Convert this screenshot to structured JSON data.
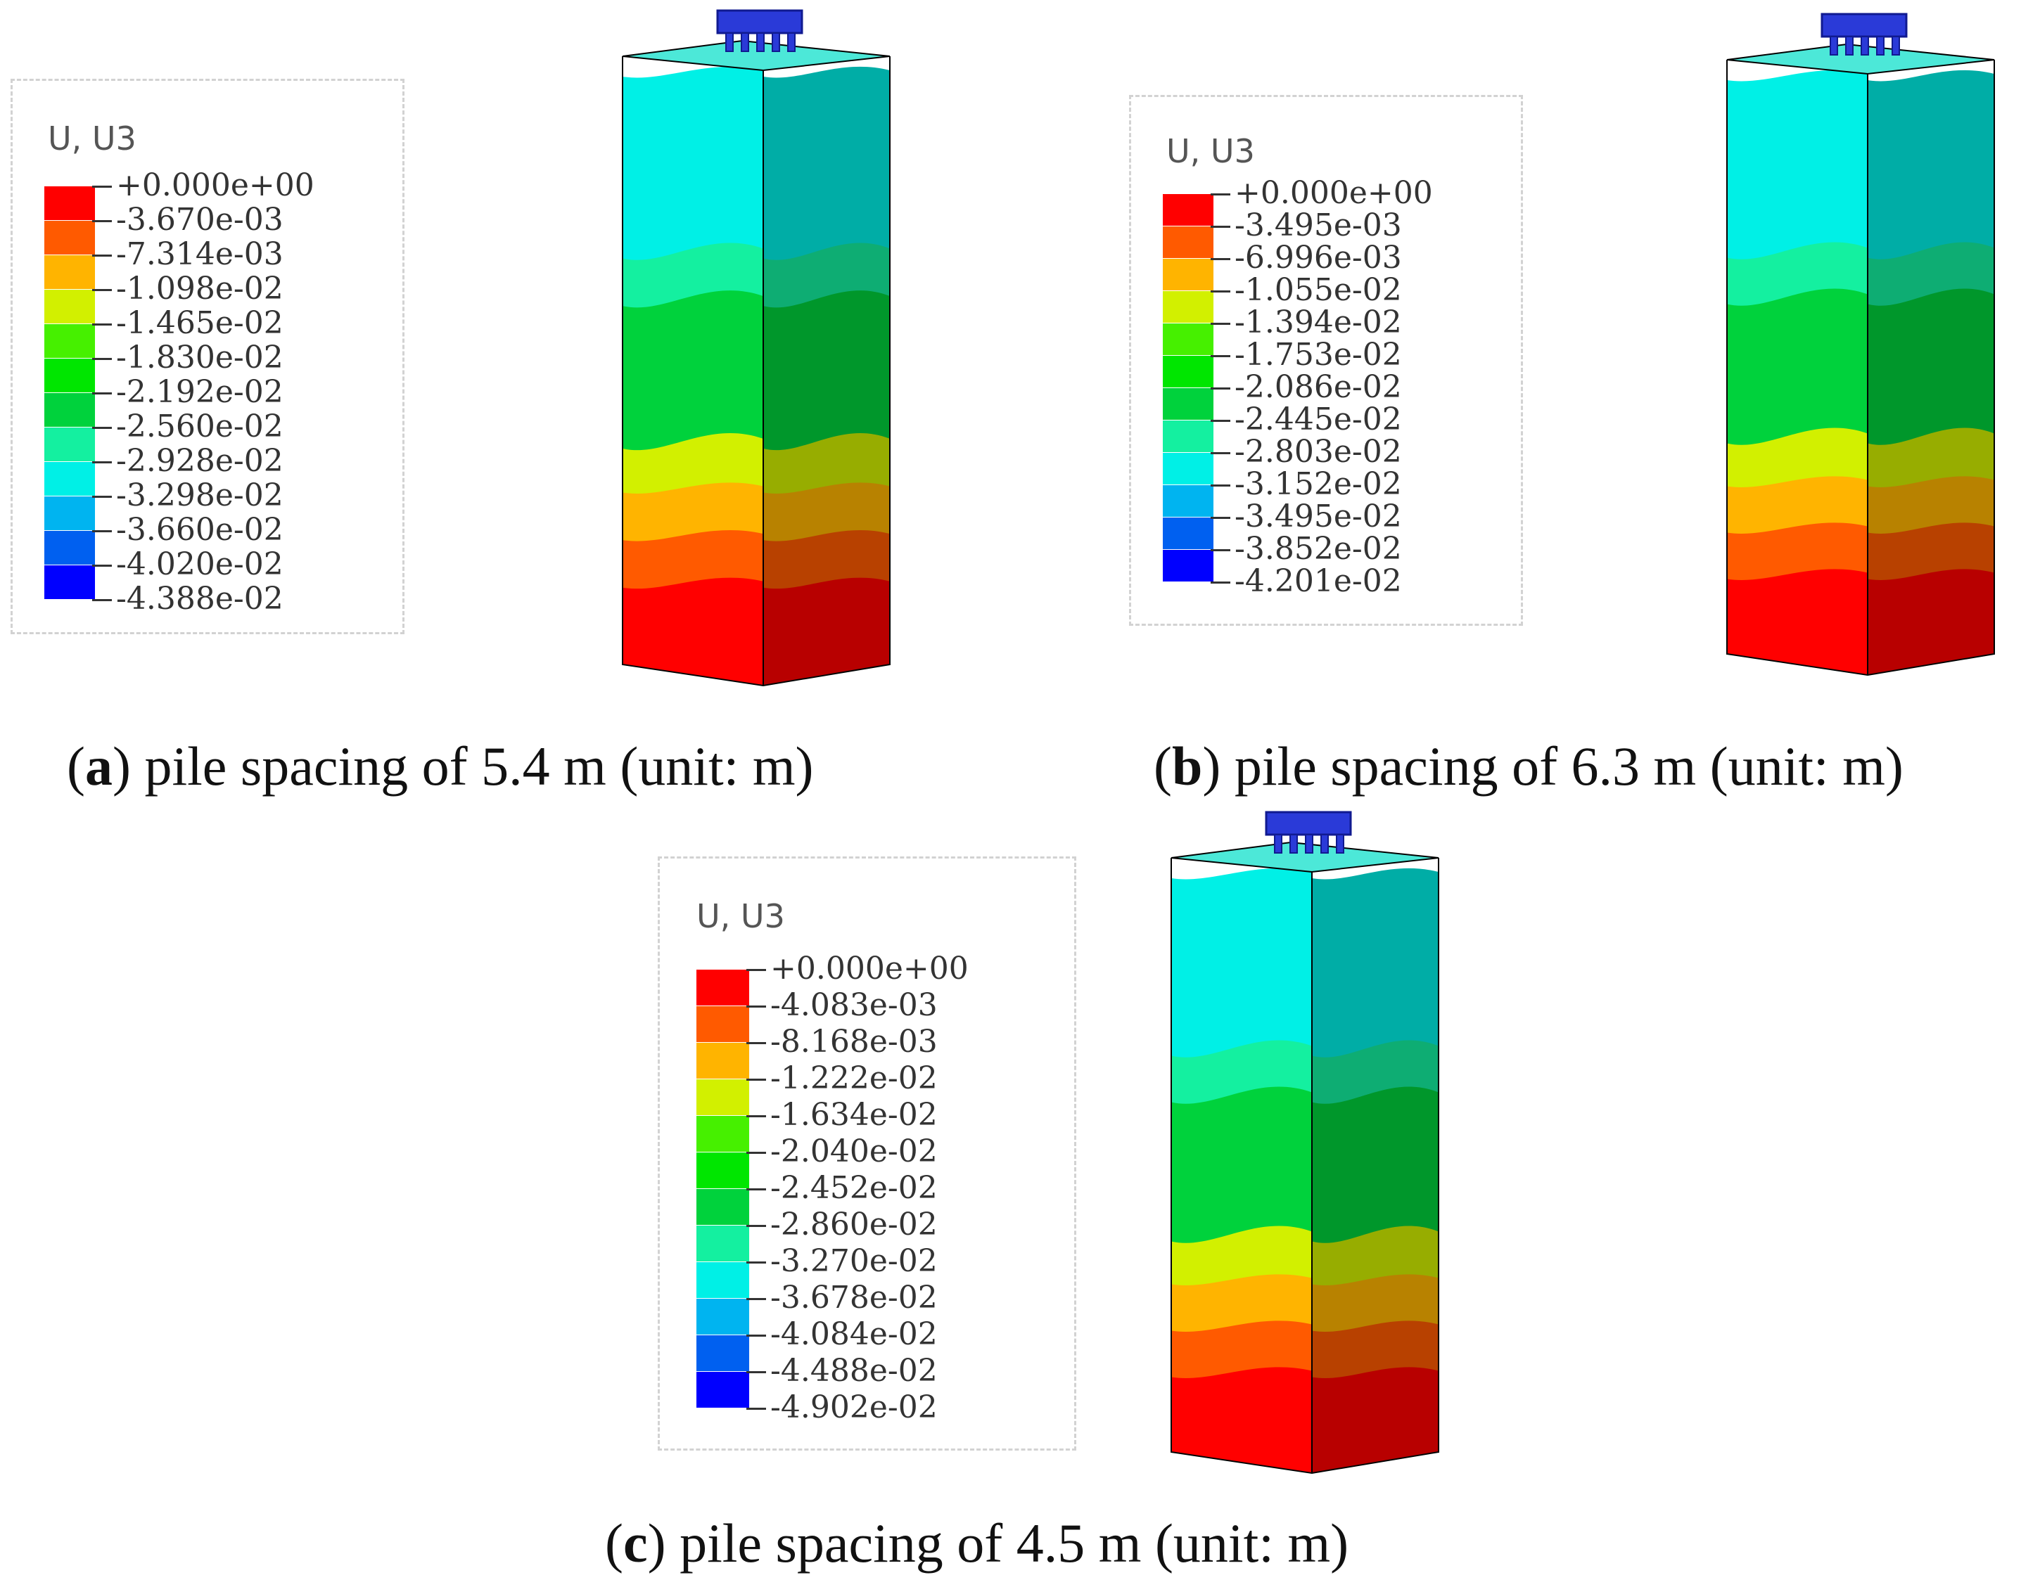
{
  "panels": [
    {
      "id": "a",
      "legend_title": "U, U3",
      "levels": [
        "+0.000e+00",
        "-3.670e-03",
        "-7.314e-03",
        "-1.098e-02",
        "-1.465e-02",
        "-1.830e-02",
        "-2.192e-02",
        "-2.560e-02",
        "-2.928e-02",
        "-3.298e-02",
        "-3.660e-02",
        "-4.020e-02",
        "-4.388e-02"
      ],
      "caption_letter": "a",
      "caption_text": ") pile spacing of 5.4 m (unit: m)"
    },
    {
      "id": "b",
      "legend_title": "U, U3",
      "levels": [
        "+0.000e+00",
        "-3.495e-03",
        "-6.996e-03",
        "-1.055e-02",
        "-1.394e-02",
        "-1.753e-02",
        "-2.086e-02",
        "-2.445e-02",
        "-2.803e-02",
        "-3.152e-02",
        "-3.495e-02",
        "-3.852e-02",
        "-4.201e-02"
      ],
      "caption_letter": "b",
      "caption_text": ") pile spacing of 6.3 m (unit: m)"
    },
    {
      "id": "c",
      "legend_title": "U, U3",
      "levels": [
        "+0.000e+00",
        "-4.083e-03",
        "-8.168e-03",
        "-1.222e-02",
        "-1.634e-02",
        "-2.040e-02",
        "-2.452e-02",
        "-2.860e-02",
        "-3.270e-02",
        "-3.678e-02",
        "-4.084e-02",
        "-4.488e-02",
        "-4.902e-02"
      ],
      "caption_letter": "c",
      "caption_text": ") pile spacing of 4.5 m (unit: m)"
    }
  ],
  "colors": {
    "scale": [
      "#ff0000",
      "#ff5a00",
      "#ffb400",
      "#d2f000",
      "#46f000",
      "#00e600",
      "#00d23c",
      "#14f0a0",
      "#00f0e6",
      "#00b4f0",
      "#0060f0",
      "#0000ff"
    ],
    "pile_cap": "#2a3ad8",
    "edge": "#000000"
  }
}
